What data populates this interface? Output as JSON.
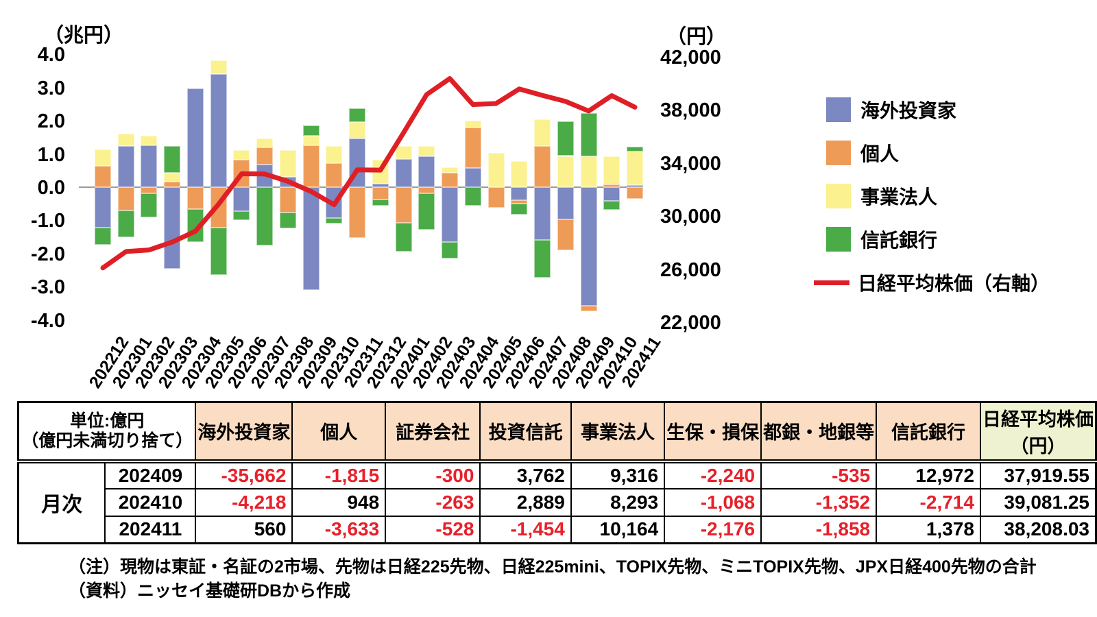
{
  "chart_data": {
    "type": "bar",
    "subtype": "stacked-bar-with-line",
    "title": "",
    "categories": [
      "202212",
      "202301",
      "202302",
      "202303",
      "202304",
      "202305",
      "202306",
      "202307",
      "202308",
      "202309",
      "202310",
      "202311",
      "202312",
      "202401",
      "202402",
      "202403",
      "202404",
      "202405",
      "202406",
      "202407",
      "202408",
      "202409",
      "202410",
      "202411"
    ],
    "series": [
      {
        "name": "海外投資家",
        "color": "#7c88c1",
        "values": [
          -1.22,
          1.23,
          1.26,
          -2.45,
          2.98,
          3.4,
          -0.73,
          0.68,
          0.31,
          -3.09,
          -0.93,
          1.47,
          0.1,
          0.85,
          0.92,
          -1.65,
          0.58,
          0,
          -0.39,
          -1.59,
          -0.97,
          -3.57,
          -0.42,
          0.06
        ]
      },
      {
        "name": "個人",
        "color": "#ef9b58",
        "values": [
          0.65,
          -0.7,
          -0.19,
          0.16,
          -0.67,
          -1.22,
          0.82,
          0.52,
          -0.76,
          1.27,
          0.72,
          -1.52,
          -0.38,
          -1.07,
          -0.18,
          0.44,
          1.21,
          -0.62,
          -0.1,
          1.24,
          -0.93,
          -0.18,
          0.09,
          -0.36
        ]
      },
      {
        "name": "事業法人",
        "color": "#fbf18e",
        "values": [
          0.48,
          0.38,
          0.28,
          0.28,
          0,
          0.43,
          0.29,
          0.27,
          0.8,
          0.28,
          0.52,
          0.49,
          0.72,
          0.39,
          0.32,
          0.16,
          0.21,
          1.03,
          0.78,
          0.81,
          0.94,
          0.93,
          0.83,
          1.02
        ]
      },
      {
        "name": "信託銀行",
        "color": "#4aab47",
        "values": [
          -0.51,
          -0.8,
          -0.72,
          0.8,
          -0.99,
          -1.43,
          -0.27,
          -1.76,
          -0.48,
          0.31,
          -0.17,
          0.41,
          -0.17,
          -0.87,
          -1.1,
          -0.49,
          -0.56,
          0,
          -0.34,
          -1.13,
          1.05,
          1.3,
          -0.27,
          0.14
        ]
      }
    ],
    "line_series": {
      "name": "日経平均株価（右軸）",
      "color": "#df1f26",
      "axis": "right",
      "values": [
        26095,
        27327,
        27446,
        28041,
        28856,
        30888,
        33189,
        33172,
        32619,
        31858,
        30859,
        33487,
        33464,
        36287,
        39166,
        40369,
        38406,
        38488,
        39583,
        39102,
        38648,
        37919.55,
        39081.25,
        38208.03
      ]
    },
    "left_axis": {
      "title": "（兆円）",
      "ylim": [
        -4.0,
        4.0
      ],
      "ticks": [
        {
          "v": 4,
          "label": "4.0"
        },
        {
          "v": 3,
          "label": "3.0"
        },
        {
          "v": 2,
          "label": "2.0"
        },
        {
          "v": 1,
          "label": "1.0"
        },
        {
          "v": 0,
          "label": "0.0"
        },
        {
          "v": -1,
          "label": "-1.0"
        },
        {
          "v": -2,
          "label": "-2.0"
        },
        {
          "v": -3,
          "label": "-3.0"
        },
        {
          "v": -4,
          "label": "-4.0"
        }
      ]
    },
    "right_axis": {
      "title": "（円）",
      "ylim": [
        22000,
        42000
      ],
      "ticks": [
        {
          "v": 42000,
          "label": "42,000"
        },
        {
          "v": 38000,
          "label": "38,000"
        },
        {
          "v": 34000,
          "label": "34,000"
        },
        {
          "v": 30000,
          "label": "30,000"
        },
        {
          "v": 26000,
          "label": "26,000"
        },
        {
          "v": 22000,
          "label": "22,000"
        }
      ]
    },
    "grid": "zero-line-only",
    "legend_position": "right"
  },
  "table": {
    "unit_lines": [
      "単位:億円",
      "（億円未満切り捨て）"
    ],
    "row_group_label": "月次",
    "columns": [
      "海外投資家",
      "個人",
      "証券会社",
      "投資信託",
      "事業法人",
      "生保・損保",
      "都銀・地銀等",
      "信託銀行"
    ],
    "nikkei_column_lines": [
      "日経平均株価",
      "（円）"
    ],
    "rows": [
      {
        "month": "202409",
        "values": [
          "-35,662",
          "-1,815",
          "-300",
          "3,762",
          "9,316",
          "-2,240",
          "-535",
          "12,972"
        ],
        "nikkei": "37,919.55"
      },
      {
        "month": "202410",
        "values": [
          "-4,218",
          "948",
          "-263",
          "2,889",
          "8,293",
          "-1,068",
          "-1,352",
          "-2,714"
        ],
        "nikkei": "39,081.25"
      },
      {
        "month": "202411",
        "values": [
          "560",
          "-3,633",
          "-528",
          "-1,454",
          "10,164",
          "-2,176",
          "-1,858",
          "1,378"
        ],
        "nikkei": "38,208.03"
      }
    ],
    "colors": {
      "header_bg": "#faddc3",
      "nikkei_header_bg": "#eff2d0",
      "negative": "#e8202a"
    }
  },
  "notes": {
    "note1": "（注）現物は東証・名証の2市場、先物は日経225先物、日経225mini、TOPIX先物、ミニTOPIX先物、JPX日経400先物の合計",
    "note2": "（資料）ニッセイ基礎研DBから作成"
  }
}
